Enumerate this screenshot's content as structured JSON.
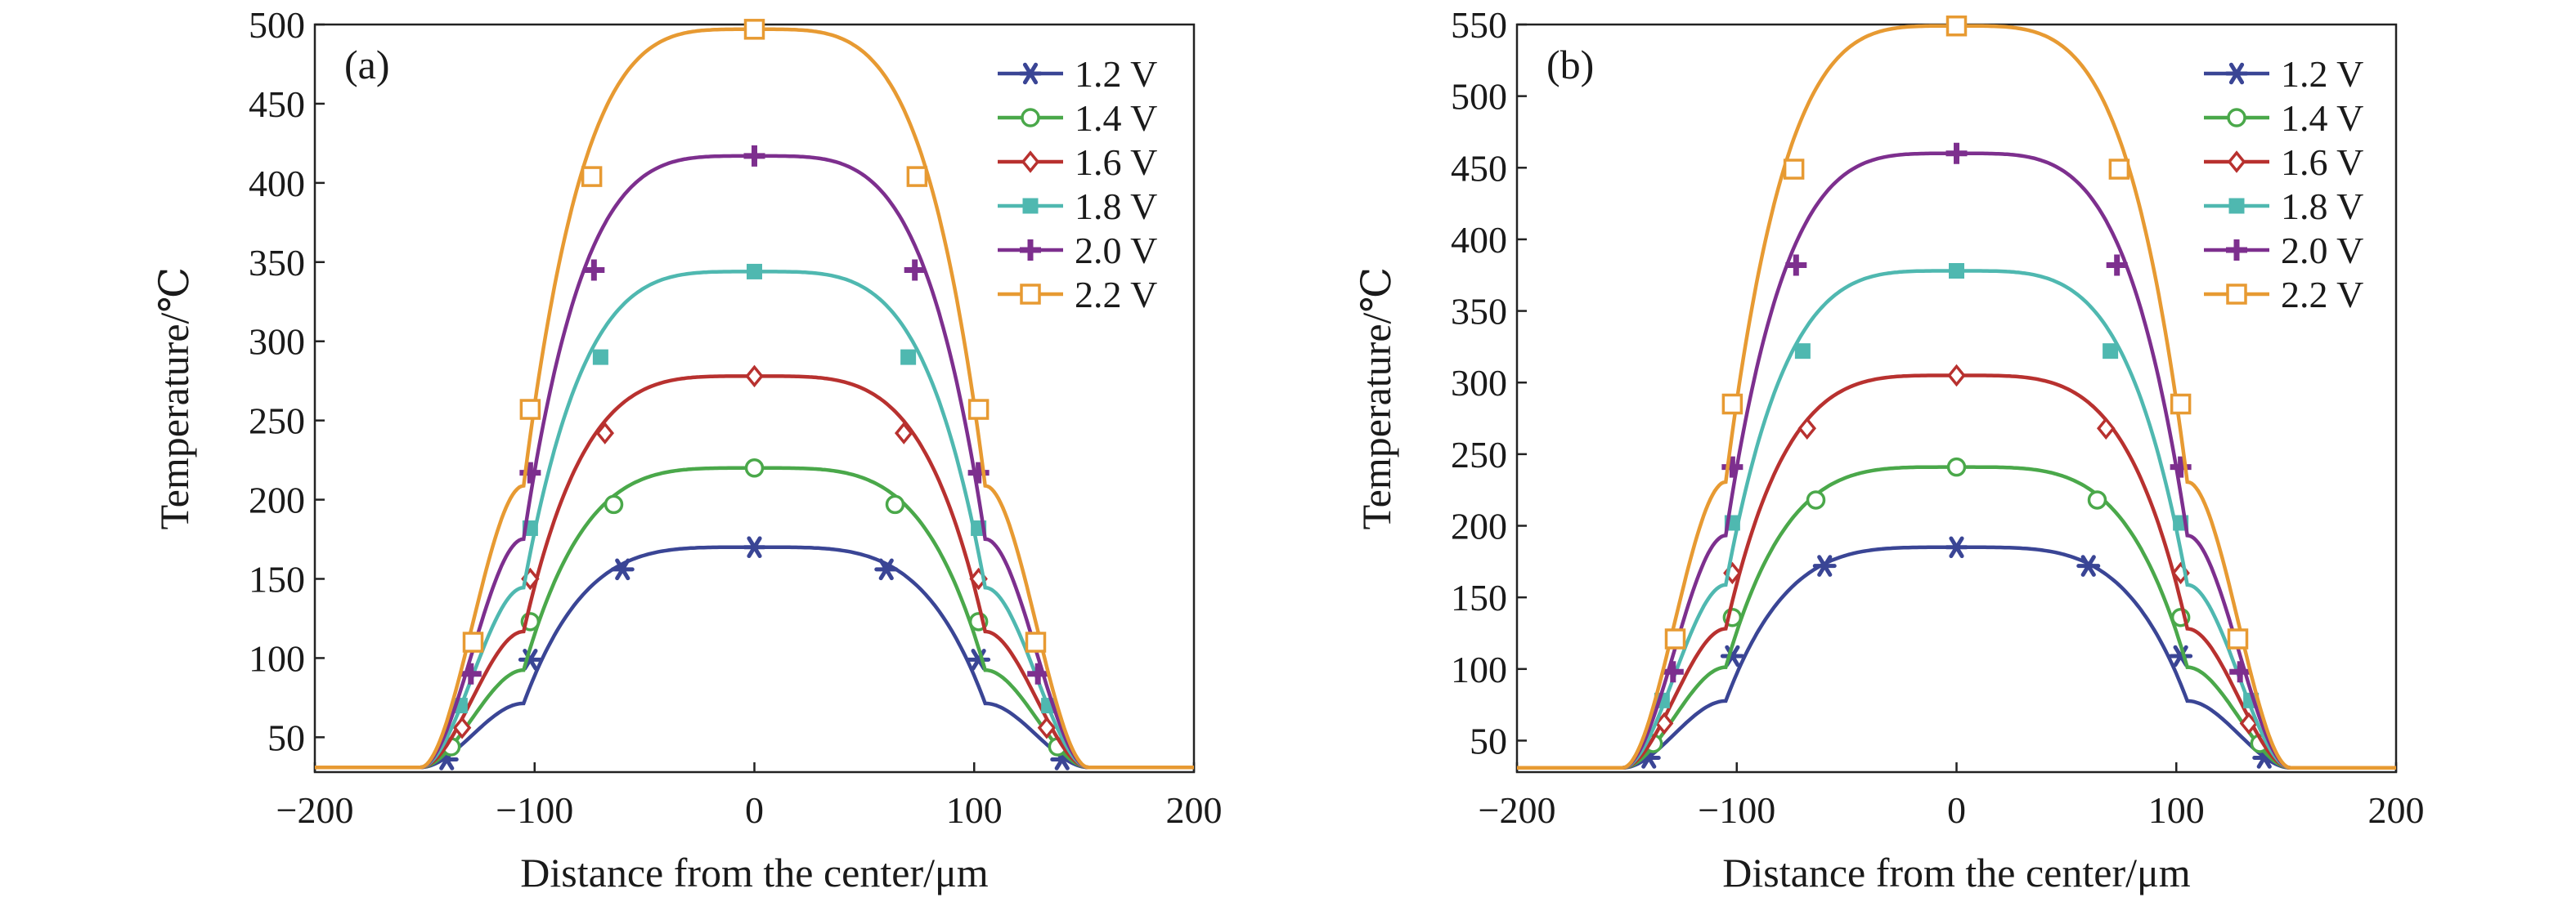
{
  "colors": {
    "1.2 V": "#3a4595",
    "1.4 V": "#4aa84a",
    "1.6 V": "#b8312f",
    "1.8 V": "#4fb8b0",
    "2.0 V": "#7d2f8e",
    "2.2 V": "#e79a32"
  },
  "chart_data": [
    {
      "type": "line",
      "panel_label": "(a)",
      "xlabel": "Distance from the center/μm",
      "ylabel": "Temperature/℃",
      "xlim": [
        -200,
        200
      ],
      "ylim": [
        28,
        500
      ],
      "xticks": [
        -200,
        -100,
        0,
        100,
        200
      ],
      "xtick_labels": [
        "−200",
        "−100",
        "0",
        "100",
        "200"
      ],
      "yticks": [
        50,
        100,
        150,
        200,
        250,
        300,
        350,
        400,
        450,
        500
      ],
      "ytick_labels": [
        "50",
        "100",
        "150",
        "200",
        "250",
        "300",
        "350",
        "400",
        "450",
        "500"
      ],
      "legend_position": "top-right",
      "series": [
        {
          "name": "1.2 V",
          "marker": "asterisk",
          "peak": 170,
          "markers": [
            [
              -140,
              36
            ],
            [
              -102,
              99
            ],
            [
              -60,
              156
            ],
            [
              0,
              170
            ],
            [
              60,
              156
            ],
            [
              102,
              99
            ],
            [
              140,
              36
            ]
          ]
        },
        {
          "name": "1.4 V",
          "marker": "circle",
          "peak": 220,
          "markers": [
            [
              -138,
              44
            ],
            [
              -102,
              123
            ],
            [
              -64,
              197
            ],
            [
              0,
              220
            ],
            [
              64,
              197
            ],
            [
              102,
              123
            ],
            [
              138,
              44
            ]
          ]
        },
        {
          "name": "1.6 V",
          "marker": "diamond",
          "peak": 278,
          "markers": [
            [
              -133,
              56
            ],
            [
              -102,
              150
            ],
            [
              -68,
              242
            ],
            [
              0,
              278
            ],
            [
              68,
              242
            ],
            [
              102,
              150
            ],
            [
              133,
              56
            ]
          ]
        },
        {
          "name": "1.8 V",
          "marker": "square-filled",
          "peak": 344,
          "markers": [
            [
              -134,
              70
            ],
            [
              -102,
              182
            ],
            [
              -70,
              290
            ],
            [
              0,
              344
            ],
            [
              70,
              290
            ],
            [
              102,
              182
            ],
            [
              134,
              70
            ]
          ]
        },
        {
          "name": "2.0 V",
          "marker": "plus",
          "peak": 417,
          "markers": [
            [
              -129,
              90
            ],
            [
              -102,
              217
            ],
            [
              -73,
              345
            ],
            [
              0,
              417
            ],
            [
              73,
              345
            ],
            [
              102,
              217
            ],
            [
              129,
              90
            ]
          ]
        },
        {
          "name": "2.2 V",
          "marker": "square-open",
          "peak": 497,
          "markers": [
            [
              -128,
              110
            ],
            [
              -102,
              257
            ],
            [
              -74,
              404
            ],
            [
              0,
              497
            ],
            [
              74,
              404
            ],
            [
              102,
              257
            ],
            [
              128,
              110
            ]
          ]
        }
      ]
    },
    {
      "type": "line",
      "panel_label": "(b)",
      "xlabel": "Distance from the center/μm",
      "ylabel": "Temperature/℃",
      "xlim": [
        -200,
        200
      ],
      "ylim": [
        28,
        550
      ],
      "xticks": [
        -200,
        -100,
        0,
        100,
        200
      ],
      "xtick_labels": [
        "−200",
        "−100",
        "0",
        "100",
        "200"
      ],
      "yticks": [
        50,
        100,
        150,
        200,
        250,
        300,
        350,
        400,
        450,
        500,
        550
      ],
      "ytick_labels": [
        "50",
        "100",
        "150",
        "200",
        "250",
        "300",
        "350",
        "400",
        "450",
        "500",
        "550"
      ],
      "legend_position": "top-right",
      "series": [
        {
          "name": "1.2 V",
          "marker": "asterisk",
          "peak": 185,
          "markers": [
            [
              -140,
              38
            ],
            [
              -102,
              109
            ],
            [
              -60,
              172
            ],
            [
              0,
              185
            ],
            [
              60,
              172
            ],
            [
              102,
              109
            ],
            [
              140,
              38
            ]
          ]
        },
        {
          "name": "1.4 V",
          "marker": "circle",
          "peak": 241,
          "markers": [
            [
              -138,
              48
            ],
            [
              -102,
              136
            ],
            [
              -64,
              218
            ],
            [
              0,
              241
            ],
            [
              64,
              218
            ],
            [
              102,
              136
            ],
            [
              138,
              48
            ]
          ]
        },
        {
          "name": "1.6 V",
          "marker": "diamond",
          "peak": 305,
          "markers": [
            [
              -133,
              62
            ],
            [
              -102,
              167
            ],
            [
              -68,
              268
            ],
            [
              0,
              305
            ],
            [
              68,
              268
            ],
            [
              102,
              167
            ],
            [
              133,
              62
            ]
          ]
        },
        {
          "name": "1.8 V",
          "marker": "square-filled",
          "peak": 378,
          "markers": [
            [
              -134,
              78
            ],
            [
              -102,
              202
            ],
            [
              -70,
              322
            ],
            [
              0,
              378
            ],
            [
              70,
              322
            ],
            [
              102,
              202
            ],
            [
              134,
              78
            ]
          ]
        },
        {
          "name": "2.0 V",
          "marker": "plus",
          "peak": 460,
          "markers": [
            [
              -129,
              98
            ],
            [
              -102,
              241
            ],
            [
              -73,
              382
            ],
            [
              0,
              460
            ],
            [
              73,
              382
            ],
            [
              102,
              241
            ],
            [
              129,
              98
            ]
          ]
        },
        {
          "name": "2.2 V",
          "marker": "square-open",
          "peak": 549,
          "markers": [
            [
              -128,
              121
            ],
            [
              -102,
              285
            ],
            [
              -74,
              449
            ],
            [
              0,
              549
            ],
            [
              74,
              449
            ],
            [
              102,
              285
            ],
            [
              128,
              121
            ]
          ]
        }
      ]
    }
  ]
}
